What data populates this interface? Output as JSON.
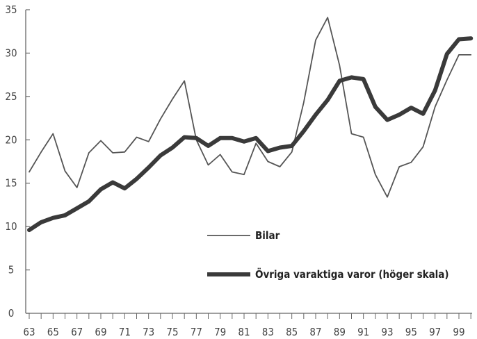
{
  "chart_data": {
    "type": "line",
    "title": "",
    "xlabel": "",
    "ylabel": "",
    "x_tick_labels": [
      "63",
      "65",
      "67",
      "69",
      "71",
      "73",
      "75",
      "77",
      "79",
      "81",
      "83",
      "85",
      "87",
      "89",
      "91",
      "93",
      "95",
      "97",
      "99"
    ],
    "x_ticks": [
      1963,
      1965,
      1967,
      1969,
      1971,
      1973,
      1975,
      1977,
      1979,
      1981,
      1983,
      1985,
      1987,
      1989,
      1991,
      1993,
      1995,
      1997,
      1999
    ],
    "xlim": [
      1963,
      2000
    ],
    "y_tick_labels": [
      "0",
      "5",
      "10",
      "15",
      "20",
      "25",
      "30",
      "35"
    ],
    "y_ticks": [
      0,
      5,
      10,
      15,
      20,
      25,
      30,
      35
    ],
    "ylim": [
      0,
      35
    ],
    "grid": false,
    "legend_position": "center",
    "x": [
      1963,
      1964,
      1965,
      1966,
      1967,
      1968,
      1969,
      1970,
      1971,
      1972,
      1973,
      1974,
      1975,
      1976,
      1977,
      1978,
      1979,
      1980,
      1981,
      1982,
      1983,
      1984,
      1985,
      1986,
      1987,
      1988,
      1989,
      1990,
      1991,
      1992,
      1993,
      1994,
      1995,
      1996,
      1997,
      1998,
      1999,
      2000
    ],
    "series": [
      {
        "name": "Bilar",
        "color": "#555555",
        "line_weight": "thin",
        "values": [
          16.3,
          18.6,
          20.7,
          16.4,
          14.5,
          18.5,
          19.9,
          18.5,
          18.6,
          20.3,
          19.8,
          22.4,
          24.7,
          26.8,
          20.0,
          17.1,
          18.3,
          16.3,
          16.0,
          19.6,
          17.5,
          16.9,
          18.6,
          24.3,
          31.5,
          34.1,
          28.6,
          20.7,
          20.3,
          16.0,
          13.4,
          16.9,
          17.4,
          19.2,
          23.8,
          26.9,
          29.8,
          29.8
        ]
      },
      {
        "name": "Övriga varaktiga varor (höger skala)",
        "color": "#3a3a3a",
        "line_weight": "thick",
        "values": [
          9.6,
          10.5,
          11.0,
          11.3,
          12.1,
          12.9,
          14.3,
          15.1,
          14.4,
          15.5,
          16.8,
          18.2,
          19.1,
          20.3,
          20.2,
          19.3,
          20.2,
          20.2,
          19.8,
          20.2,
          18.7,
          19.1,
          19.3,
          21.0,
          22.9,
          24.6,
          26.8,
          27.2,
          27.0,
          23.8,
          22.3,
          22.9,
          23.7,
          23.0,
          25.7,
          29.9,
          31.6,
          31.7
        ]
      }
    ]
  }
}
